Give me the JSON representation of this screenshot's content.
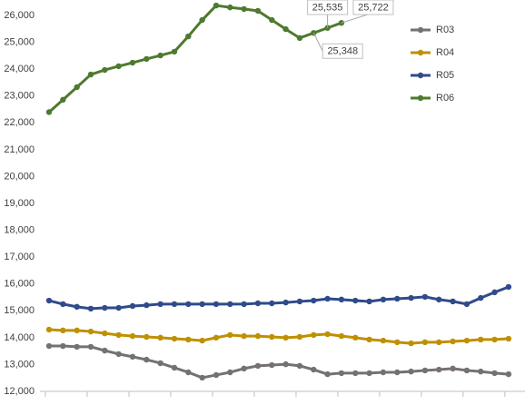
{
  "chart_data": {
    "type": "line",
    "categories": [
      null,
      null,
      null,
      null,
      null,
      null,
      null,
      null,
      null,
      null,
      null,
      null,
      null,
      null,
      null,
      null,
      null,
      null,
      null,
      null,
      null,
      null,
      null,
      null,
      null,
      null,
      null,
      null,
      null,
      null,
      null,
      null,
      null,
      null
    ],
    "series": [
      {
        "name": "R03",
        "color": "#767171",
        "values": [
          13690,
          13690,
          13660,
          13660,
          13520,
          13390,
          13290,
          13180,
          13050,
          12880,
          12710,
          12510,
          12610,
          12710,
          12850,
          12950,
          12980,
          13010,
          12950,
          12810,
          12640,
          12680,
          12680,
          12680,
          12710,
          12710,
          12740,
          12780,
          12810,
          12850,
          12780,
          12740,
          12680,
          12640
        ]
      },
      {
        "name": "R04",
        "color": "#bf9000",
        "values": [
          14300,
          14270,
          14270,
          14230,
          14160,
          14100,
          14060,
          14030,
          14000,
          13960,
          13930,
          13890,
          14000,
          14100,
          14060,
          14060,
          14030,
          14000,
          14030,
          14100,
          14130,
          14060,
          14000,
          13930,
          13890,
          13830,
          13790,
          13830,
          13830,
          13860,
          13890,
          13930,
          13930,
          13960
        ]
      },
      {
        "name": "R05",
        "color": "#2f4b8a",
        "values": [
          15380,
          15250,
          15150,
          15080,
          15110,
          15110,
          15180,
          15210,
          15250,
          15250,
          15250,
          15250,
          15250,
          15250,
          15250,
          15280,
          15280,
          15310,
          15350,
          15380,
          15450,
          15420,
          15380,
          15350,
          15420,
          15450,
          15480,
          15520,
          15420,
          15350,
          15250,
          15480,
          15690,
          15890
        ]
      },
      {
        "name": "R06",
        "color": "#4e7a2f",
        "values": [
          22400,
          22860,
          23330,
          23800,
          23970,
          24110,
          24240,
          24380,
          24510,
          24650,
          25220,
          25830,
          26370,
          26300,
          26240,
          26170,
          25830,
          25490,
          25160,
          25348,
          25535,
          25722,
          null,
          null,
          null,
          null,
          null,
          null,
          null,
          null,
          null,
          null,
          null,
          null
        ],
        "value_labels": [
          null,
          null,
          null,
          null,
          null,
          null,
          null,
          null,
          null,
          null,
          null,
          null,
          null,
          null,
          null,
          null,
          null,
          null,
          null,
          "25,348",
          "25,535",
          "25,722",
          null,
          null,
          null,
          null,
          null,
          null,
          null,
          null,
          null,
          null,
          null,
          null
        ]
      }
    ],
    "ylim": [
      12000,
      26000
    ],
    "yticks": [
      {
        "value": 12000,
        "label": "12,000"
      },
      {
        "value": 13000,
        "label": "13,000"
      },
      {
        "value": 14000,
        "label": "14,000"
      },
      {
        "value": 15000,
        "label": "15,000"
      },
      {
        "value": 16000,
        "label": "16,000"
      },
      {
        "value": 17000,
        "label": "17,000"
      },
      {
        "value": 18000,
        "label": "18,000"
      },
      {
        "value": 19000,
        "label": "19,000"
      },
      {
        "value": 20000,
        "label": "20,000"
      },
      {
        "value": 21000,
        "label": "21,000"
      },
      {
        "value": 22000,
        "label": "22,000"
      },
      {
        "value": 23000,
        "label": "23,000"
      },
      {
        "value": 24000,
        "label": "24,000"
      },
      {
        "value": 25000,
        "label": "25,000"
      },
      {
        "value": 26000,
        "label": "26,000"
      }
    ],
    "grid": false,
    "legend": "right"
  }
}
